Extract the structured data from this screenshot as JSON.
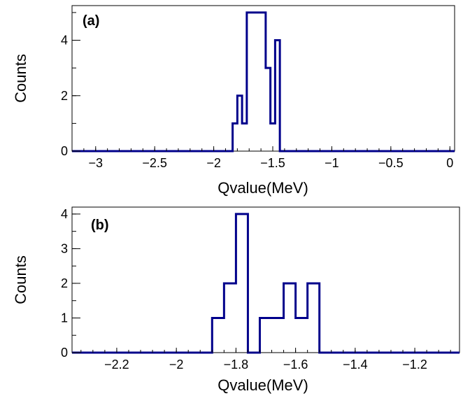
{
  "chart_data": [
    {
      "type": "histogram",
      "panel_label": "(a)",
      "xlabel": "Qvalue(MeV)",
      "ylabel": "Counts",
      "xlim": [
        -3.2,
        0.04
      ],
      "ylim": [
        0,
        5.25
      ],
      "xticks": [
        -3,
        -2.5,
        -2,
        -1.5,
        -1,
        -0.5,
        0
      ],
      "xtick_labels": [
        "−3",
        "−2.5",
        "−2",
        "−1.5",
        "−1",
        "−0.5",
        "0"
      ],
      "yticks": [
        0,
        2,
        4
      ],
      "ytick_labels": [
        "0",
        "2",
        "4"
      ],
      "line_color": "#00008b",
      "bins": [
        {
          "x0": -1.84,
          "x1": -1.8,
          "count": 1
        },
        {
          "x0": -1.8,
          "x1": -1.76,
          "count": 2
        },
        {
          "x0": -1.76,
          "x1": -1.72,
          "count": 1
        },
        {
          "x0": -1.72,
          "x1": -1.68,
          "count": 5
        },
        {
          "x0": -1.68,
          "x1": -1.64,
          "count": 5
        },
        {
          "x0": -1.64,
          "x1": -1.6,
          "count": 5
        },
        {
          "x0": -1.6,
          "x1": -1.56,
          "count": 5
        },
        {
          "x0": -1.56,
          "x1": -1.52,
          "count": 3
        },
        {
          "x0": -1.52,
          "x1": -1.48,
          "count": 1
        },
        {
          "x0": -1.48,
          "x1": -1.44,
          "count": 4
        },
        {
          "x0": -1.44,
          "x1": -1.4,
          "count": 0
        }
      ]
    },
    {
      "type": "histogram",
      "panel_label": "(b)",
      "xlabel": "Qvalue(MeV)",
      "ylabel": "Counts",
      "xlim": [
        -2.35,
        -1.05
      ],
      "ylim": [
        0,
        4.2
      ],
      "xticks": [
        -2.2,
        -2,
        -1.8,
        -1.6,
        -1.4,
        -1.2
      ],
      "xtick_labels": [
        "−2.2",
        "−2",
        "−1.8",
        "−1.6",
        "−1.4",
        "−1.2"
      ],
      "yticks": [
        0,
        1,
        2,
        3,
        4
      ],
      "ytick_labels": [
        "0",
        "1",
        "2",
        "3",
        "4"
      ],
      "line_color": "#00008b",
      "bins": [
        {
          "x0": -1.88,
          "x1": -1.84,
          "count": 1
        },
        {
          "x0": -1.84,
          "x1": -1.8,
          "count": 2
        },
        {
          "x0": -1.8,
          "x1": -1.76,
          "count": 4
        },
        {
          "x0": -1.76,
          "x1": -1.72,
          "count": 0
        },
        {
          "x0": -1.72,
          "x1": -1.68,
          "count": 1
        },
        {
          "x0": -1.68,
          "x1": -1.64,
          "count": 1
        },
        {
          "x0": -1.64,
          "x1": -1.6,
          "count": 2
        },
        {
          "x0": -1.6,
          "x1": -1.56,
          "count": 1
        },
        {
          "x0": -1.56,
          "x1": -1.52,
          "count": 2
        }
      ]
    }
  ]
}
